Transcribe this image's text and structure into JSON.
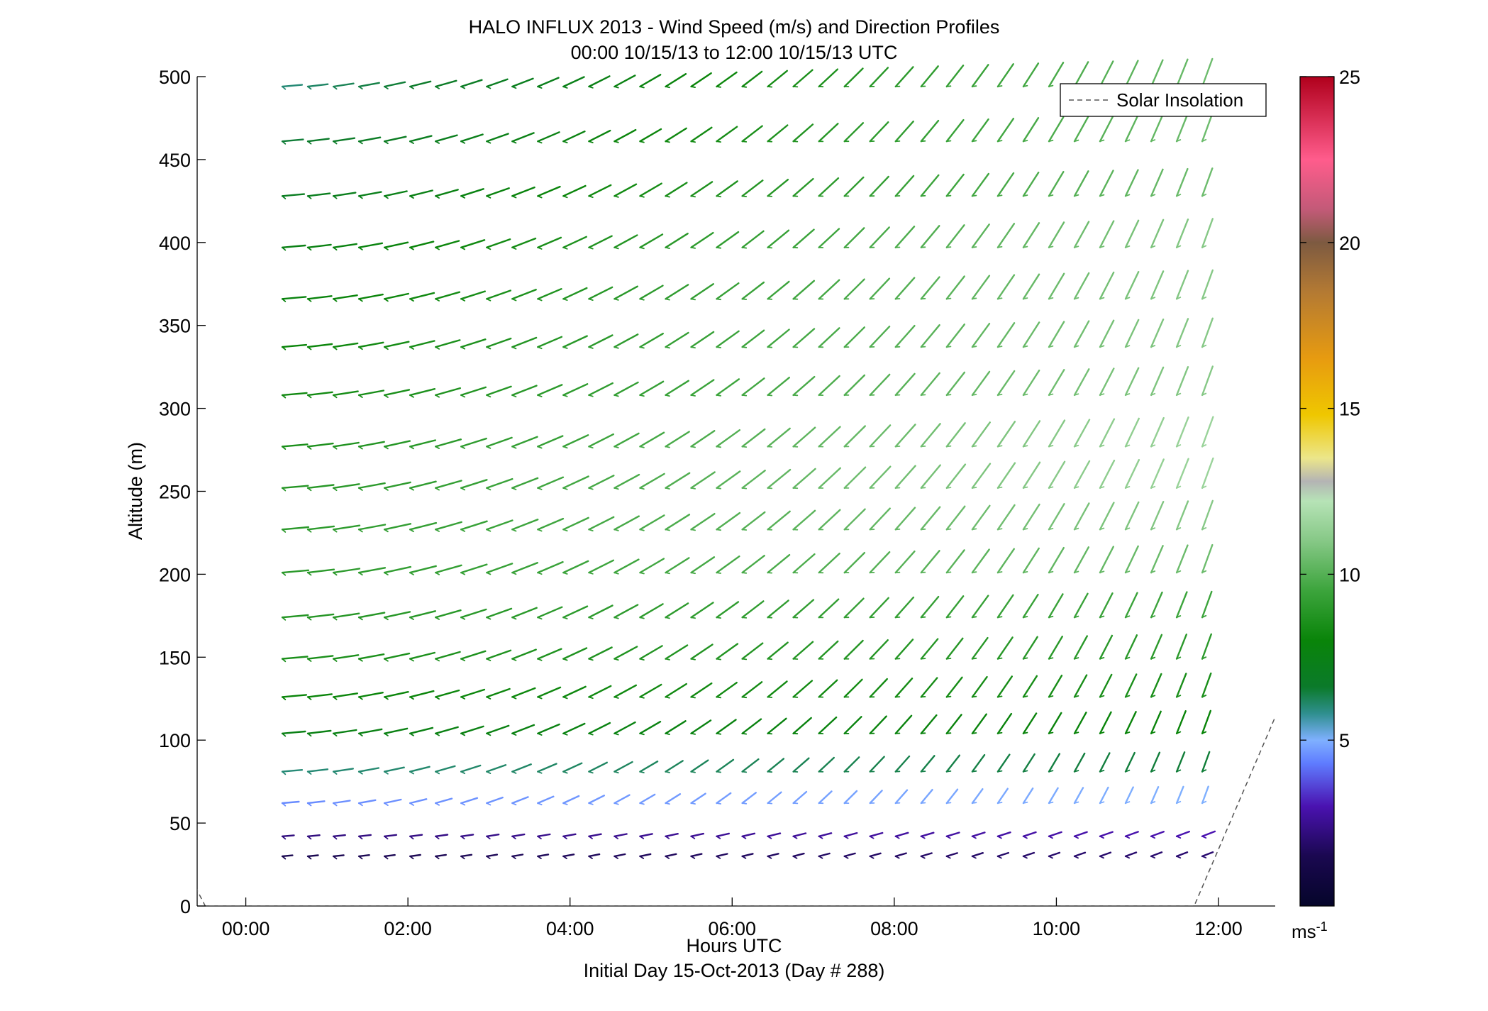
{
  "title_line1": "HALO INFLUX 2013 - Wind Speed (m/s) and Direction Profiles",
  "title_line2": "00:00 10/15/13 to 12:00 10/15/13  UTC",
  "xlabel": "Hours UTC",
  "xlabel2": "Initial Day 15-Oct-2013 (Day # 288)",
  "ylabel": "Altitude (m)",
  "legend_label": "Solar Insolation",
  "colorbar_unit": "ms",
  "colorbar_unit_exp": "-1",
  "chart_data": {
    "type": "wind-barb profile",
    "x_ticks": [
      {
        "v": 0,
        "label": "00:00"
      },
      {
        "v": 2,
        "label": "02:00"
      },
      {
        "v": 4,
        "label": "04:00"
      },
      {
        "v": 6,
        "label": "06:00"
      },
      {
        "v": 8,
        "label": "08:00"
      },
      {
        "v": 10,
        "label": "10:00"
      },
      {
        "v": 12,
        "label": "12:00"
      }
    ],
    "y_ticks": [
      {
        "v": 0,
        "label": "0"
      },
      {
        "v": 50,
        "label": "50"
      },
      {
        "v": 100,
        "label": "100"
      },
      {
        "v": 150,
        "label": "150"
      },
      {
        "v": 200,
        "label": "200"
      },
      {
        "v": 250,
        "label": "250"
      },
      {
        "v": 300,
        "label": "300"
      },
      {
        "v": 350,
        "label": "350"
      },
      {
        "v": 400,
        "label": "400"
      },
      {
        "v": 450,
        "label": "450"
      },
      {
        "v": 500,
        "label": "500"
      }
    ],
    "colorbar_ticks": [
      {
        "v": 5,
        "label": "5"
      },
      {
        "v": 10,
        "label": "10"
      },
      {
        "v": 15,
        "label": "15"
      },
      {
        "v": 20,
        "label": "20"
      },
      {
        "v": 25,
        "label": "25"
      }
    ],
    "xlim": [
      -0.6,
      12.7
    ],
    "ylim": [
      0,
      500
    ],
    "speed_range": [
      0,
      25
    ],
    "legend_position": "top-right",
    "grid": false,
    "solar_insolation_line": [
      [
        -0.67,
        16
      ],
      [
        -0.5,
        0
      ],
      [
        11.7,
        0
      ],
      [
        12.7,
        114
      ]
    ],
    "altitudes_m": [
      30,
      42,
      62,
      81,
      104,
      126,
      149,
      174,
      201,
      227,
      252,
      277,
      308,
      337,
      366,
      397,
      428,
      461,
      494
    ],
    "speed_profile_first_hour": [
      1.5,
      2.2,
      4.5,
      6.0,
      7.5,
      8.0,
      8.5,
      8.8,
      9.0,
      9.0,
      8.8,
      8.5,
      8.2,
      8.0,
      7.8,
      7.5,
      7.0,
      6.5,
      6.0
    ],
    "speed_profile_last_hour": [
      2.0,
      3.0,
      5.0,
      6.5,
      8.0,
      8.5,
      9.0,
      9.5,
      10.5,
      11.0,
      11.5,
      11.5,
      11.0,
      11.0,
      11.0,
      11.0,
      10.5,
      10.5,
      10.5
    ],
    "direction_deg_first_hour": 265,
    "direction_deg_last_hour": 200
  }
}
